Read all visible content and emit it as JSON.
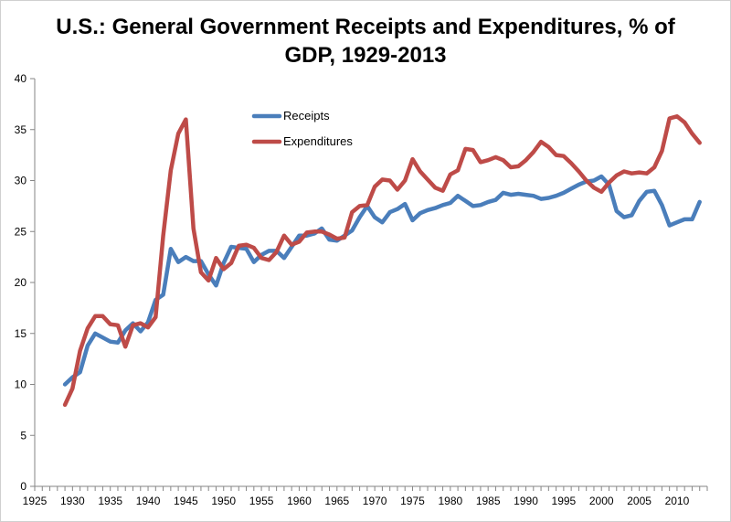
{
  "chart_data": {
    "type": "line",
    "title": "U.S.: General Government Receipts and Expenditures, % of GDP, 1929-2013",
    "xlabel": "",
    "ylabel": "",
    "xlim": [
      1925,
      2014
    ],
    "ylim": [
      0,
      40
    ],
    "x_ticks": [
      1925,
      1930,
      1935,
      1940,
      1945,
      1950,
      1955,
      1960,
      1965,
      1970,
      1975,
      1980,
      1985,
      1990,
      1995,
      2000,
      2005,
      2010
    ],
    "y_ticks": [
      0,
      5,
      10,
      15,
      20,
      25,
      30,
      35,
      40
    ],
    "grid": false,
    "legend_position": "top-center",
    "x": [
      1929,
      1930,
      1931,
      1932,
      1933,
      1934,
      1935,
      1936,
      1937,
      1938,
      1939,
      1940,
      1941,
      1942,
      1943,
      1944,
      1945,
      1946,
      1947,
      1948,
      1949,
      1950,
      1951,
      1952,
      1953,
      1954,
      1955,
      1956,
      1957,
      1958,
      1959,
      1960,
      1961,
      1962,
      1963,
      1964,
      1965,
      1966,
      1967,
      1968,
      1969,
      1970,
      1971,
      1972,
      1973,
      1974,
      1975,
      1976,
      1977,
      1978,
      1979,
      1980,
      1981,
      1982,
      1983,
      1984,
      1985,
      1986,
      1987,
      1988,
      1989,
      1990,
      1991,
      1992,
      1993,
      1994,
      1995,
      1996,
      1997,
      1998,
      1999,
      2000,
      2001,
      2002,
      2003,
      2004,
      2005,
      2006,
      2007,
      2008,
      2009,
      2010,
      2011,
      2012,
      2013
    ],
    "series": [
      {
        "name": "Receipts",
        "color": "#4a7ebb",
        "values": [
          10.0,
          10.7,
          11.2,
          13.8,
          15.0,
          14.6,
          14.2,
          14.1,
          15.3,
          16.0,
          15.2,
          16.1,
          18.3,
          18.8,
          23.3,
          22.0,
          22.5,
          22.1,
          22.1,
          20.8,
          19.7,
          21.9,
          23.5,
          23.4,
          23.3,
          22.0,
          22.7,
          23.1,
          23.1,
          22.4,
          23.5,
          24.6,
          24.6,
          24.8,
          25.3,
          24.2,
          24.1,
          24.6,
          25.1,
          26.4,
          27.5,
          26.4,
          25.9,
          26.9,
          27.2,
          27.7,
          26.1,
          26.8,
          27.1,
          27.3,
          27.6,
          27.8,
          28.5,
          28.0,
          27.5,
          27.6,
          27.9,
          28.1,
          28.8,
          28.6,
          28.7,
          28.6,
          28.5,
          28.2,
          28.3,
          28.5,
          28.8,
          29.2,
          29.6,
          29.9,
          30.0,
          30.4,
          29.6,
          27.0,
          26.4,
          26.6,
          28.0,
          28.9,
          29.0,
          27.6,
          25.6,
          25.9,
          26.2,
          26.2,
          27.9
        ]
      },
      {
        "name": "Expenditures",
        "color": "#be4b48",
        "values": [
          8.0,
          9.6,
          13.3,
          15.5,
          16.7,
          16.7,
          15.9,
          15.8,
          13.7,
          15.8,
          16.0,
          15.6,
          16.6,
          24.6,
          31.0,
          34.6,
          36.0,
          25.3,
          21.0,
          20.2,
          22.4,
          21.3,
          21.9,
          23.6,
          23.7,
          23.4,
          22.4,
          22.2,
          23.0,
          24.6,
          23.7,
          24.0,
          24.9,
          25.0,
          25.0,
          24.7,
          24.3,
          24.4,
          26.9,
          27.5,
          27.6,
          29.4,
          30.1,
          30.0,
          29.1,
          30.0,
          32.1,
          30.9,
          30.1,
          29.3,
          29.0,
          30.6,
          31.0,
          33.1,
          33.0,
          31.8,
          32.0,
          32.3,
          32.0,
          31.3,
          31.4,
          32.0,
          32.8,
          33.8,
          33.3,
          32.5,
          32.4,
          31.7,
          30.9,
          30.0,
          29.3,
          28.9,
          29.8,
          30.5,
          30.9,
          30.7,
          30.8,
          30.7,
          31.3,
          32.9,
          36.1,
          36.3,
          35.7,
          34.6,
          33.7
        ]
      }
    ]
  }
}
